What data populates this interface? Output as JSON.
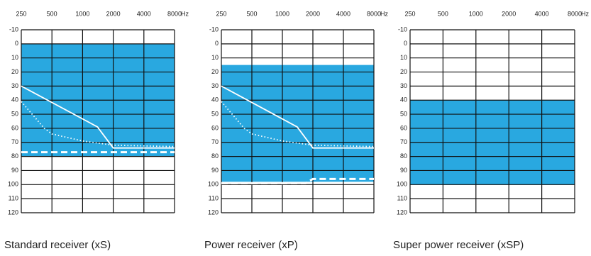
{
  "chart_data": [
    {
      "type": "audiogram",
      "title": "Standard receiver (xS)",
      "x_unit": "Hz",
      "log_x": true,
      "xlim": [
        250,
        8000
      ],
      "xticks": [
        250,
        500,
        1000,
        2000,
        4000,
        8000
      ],
      "ylim": [
        -10,
        120
      ],
      "yticks": [
        -10,
        0,
        10,
        20,
        30,
        40,
        50,
        60,
        70,
        80,
        90,
        100,
        110,
        120
      ],
      "y_inverted": true,
      "grid": true,
      "range": [
        0,
        80
      ],
      "range_color": "#29a8e0",
      "series": [
        {
          "color": "#ffffff",
          "style": "solid",
          "x": [
            250,
            1400,
            2000,
            8000
          ],
          "values": [
            30,
            59,
            74,
            74
          ]
        },
        {
          "color": "#ffffff",
          "style": "dotted",
          "x": [
            250,
            420,
            500,
            1000,
            2000,
            8000
          ],
          "values": [
            41,
            60,
            64,
            69,
            72,
            73
          ]
        },
        {
          "color": "#ffffff",
          "style": "dashed",
          "x": [
            250,
            8000
          ],
          "values": [
            77,
            77
          ]
        }
      ]
    },
    {
      "type": "audiogram",
      "title": "Power receiver (xP)",
      "x_unit": "Hz",
      "log_x": true,
      "xlim": [
        250,
        8000
      ],
      "xticks": [
        250,
        500,
        1000,
        2000,
        4000,
        8000
      ],
      "ylim": [
        -10,
        120
      ],
      "yticks": [
        -10,
        0,
        10,
        20,
        30,
        40,
        50,
        60,
        70,
        80,
        90,
        100,
        110,
        120
      ],
      "y_inverted": true,
      "grid": true,
      "range": [
        15,
        98
      ],
      "range_color": "#29a8e0",
      "series": [
        {
          "color": "#ffffff",
          "style": "solid",
          "x": [
            250,
            1400,
            2000,
            8000
          ],
          "values": [
            30,
            59,
            74,
            74
          ]
        },
        {
          "color": "#ffffff",
          "style": "dotted",
          "x": [
            250,
            420,
            500,
            1000,
            2000,
            8000
          ],
          "values": [
            41,
            60,
            64,
            69,
            72,
            73
          ]
        },
        {
          "color": "#ffffff",
          "style": "dashed",
          "x": [
            250,
            1700,
            2000,
            8000
          ],
          "values": [
            99,
            99,
            96,
            96
          ]
        }
      ]
    },
    {
      "type": "audiogram",
      "title": "Super power receiver (xSP)",
      "x_unit": "Hz",
      "log_x": true,
      "xlim": [
        250,
        8000
      ],
      "xticks": [
        250,
        500,
        1000,
        2000,
        4000,
        8000
      ],
      "ylim": [
        -10,
        120
      ],
      "yticks": [
        -10,
        0,
        10,
        20,
        30,
        40,
        50,
        60,
        70,
        80,
        90,
        100,
        110,
        120
      ],
      "y_inverted": true,
      "grid": true,
      "range": [
        40,
        100
      ],
      "range_color": "#29a8e0",
      "series": []
    }
  ]
}
